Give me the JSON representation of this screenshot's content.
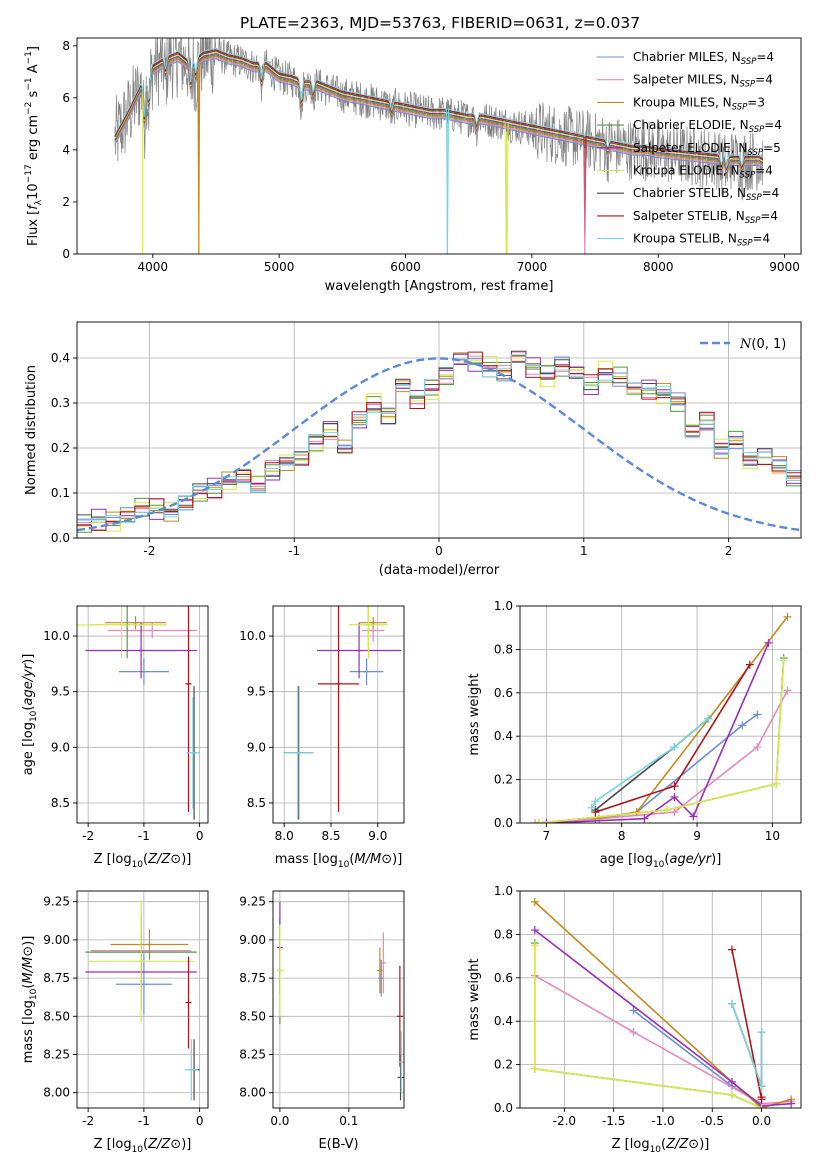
{
  "figure": {
    "title": "PLATE=2363, MJD=53763, FIBERID=0631, z=0.037"
  },
  "colors": {
    "Chabrier MILES": "#6a8fd8",
    "Salpeter MILES": "#e787be",
    "Kroupa MILES": "#c48a1f",
    "Chabrier ELODIE": "#4f9a43",
    "Salpeter ELODIE": "#9b2eb8",
    "Kroupa ELODIE": "#d9e84c",
    "Chabrier STELIB": "#4a4a4a",
    "Salpeter STELIB": "#b0141b",
    "Kroupa STELIB": "#7bd4dc",
    "data": "#808080",
    "normal": "#5b8ad8"
  },
  "legend_spectrum": [
    {
      "name": "Chabrier MILES",
      "sub": "4"
    },
    {
      "name": "Salpeter MILES",
      "sub": "4"
    },
    {
      "name": "Kroupa MILES",
      "sub": "3"
    },
    {
      "name": "Chabrier ELODIE",
      "sub": "4"
    },
    {
      "name": "Salpeter ELODIE",
      "sub": "5"
    },
    {
      "name": "Kroupa ELODIE",
      "sub": "4"
    },
    {
      "name": "Chabrier STELIB",
      "sub": "4"
    },
    {
      "name": "Salpeter STELIB",
      "sub": "4"
    },
    {
      "name": "Kroupa STELIB",
      "sub": "4"
    }
  ],
  "legend_residual": {
    "label": "N(0, 1)"
  },
  "chart_data": [
    {
      "id": "spectrum",
      "type": "line",
      "xlabel": "wavelength [Angstrom, rest frame]",
      "ylabel": "Flux [f_λ 10^-17 erg cm^-2 s^-1 A^-1]",
      "xlim": [
        3400,
        9130
      ],
      "ylim": [
        0,
        8.3
      ],
      "xticks": [
        4000,
        5000,
        6000,
        7000,
        8000,
        9000
      ],
      "yticks": [
        0,
        2,
        4,
        6,
        8
      ],
      "grid": false,
      "legend_position": "top-right",
      "continuum": [
        [
          3700,
          4.4
        ],
        [
          3800,
          5.3
        ],
        [
          3900,
          6.3
        ],
        [
          4000,
          7.1
        ],
        [
          4100,
          7.4
        ],
        [
          4200,
          7.6
        ],
        [
          4300,
          7.2
        ],
        [
          4400,
          7.6
        ],
        [
          4500,
          7.7
        ],
        [
          4600,
          7.5
        ],
        [
          4700,
          7.4
        ],
        [
          4800,
          7.2
        ],
        [
          4900,
          7.2
        ],
        [
          5000,
          6.8
        ],
        [
          5100,
          6.7
        ],
        [
          5200,
          6.5
        ],
        [
          5300,
          6.5
        ],
        [
          5400,
          6.3
        ],
        [
          5500,
          6.1
        ],
        [
          5600,
          6.0
        ],
        [
          5700,
          5.9
        ],
        [
          5800,
          5.8
        ],
        [
          5900,
          5.7
        ],
        [
          6000,
          5.6
        ],
        [
          6100,
          5.5
        ],
        [
          6200,
          5.4
        ],
        [
          6300,
          5.4
        ],
        [
          6400,
          5.3
        ],
        [
          6500,
          5.2
        ],
        [
          6600,
          5.2
        ],
        [
          6700,
          5.1
        ],
        [
          6800,
          5.0
        ],
        [
          6900,
          4.9
        ],
        [
          7000,
          4.8
        ],
        [
          7100,
          4.7
        ],
        [
          7200,
          4.6
        ],
        [
          7300,
          4.5
        ],
        [
          7400,
          4.4
        ],
        [
          7500,
          4.3
        ],
        [
          7600,
          4.2
        ],
        [
          7700,
          4.1
        ],
        [
          7800,
          4.0
        ],
        [
          7900,
          4.0
        ],
        [
          8000,
          3.9
        ],
        [
          8200,
          3.8
        ],
        [
          8400,
          3.7
        ],
        [
          8600,
          3.6
        ],
        [
          8800,
          3.6
        ],
        [
          8830,
          3.5
        ]
      ]
    },
    {
      "id": "residuals",
      "type": "line",
      "xlabel": "(data-model)/error",
      "ylabel": "Normed distribution",
      "xlim": [
        -2.5,
        2.5
      ],
      "ylim": [
        0,
        0.48
      ],
      "xticks": [
        -2,
        -1,
        0,
        1,
        2
      ],
      "yticks": [
        0,
        0.1,
        0.2,
        0.3,
        0.4
      ],
      "grid": true,
      "legend_position": "top-right",
      "bin_edges_start": -2.5,
      "bin_width": 0.1,
      "hist_values": [
        0.03,
        0.04,
        0.035,
        0.05,
        0.07,
        0.065,
        0.06,
        0.08,
        0.1,
        0.11,
        0.125,
        0.135,
        0.12,
        0.15,
        0.17,
        0.18,
        0.21,
        0.24,
        0.2,
        0.26,
        0.3,
        0.27,
        0.34,
        0.31,
        0.33,
        0.36,
        0.4,
        0.39,
        0.38,
        0.37,
        0.4,
        0.38,
        0.36,
        0.38,
        0.37,
        0.34,
        0.37,
        0.36,
        0.33,
        0.33,
        0.32,
        0.3,
        0.24,
        0.26,
        0.2,
        0.22,
        0.17,
        0.18,
        0.16,
        0.13,
        0.12,
        0.11,
        0.09,
        0.1,
        0.08,
        0.07,
        0.06,
        0.05,
        0.05,
        0.04
      ],
      "normal_mean": 0,
      "normal_sigma": 1
    },
    {
      "id": "age_vs_Z",
      "type": "scatter",
      "xlabel": "Z [log10(Z/Z⊙)]",
      "ylabel": "age [log10(age/yr)]",
      "xlim": [
        -2.2,
        0.15
      ],
      "ylim": [
        8.32,
        10.27
      ],
      "xticks": [
        -2,
        -1,
        0
      ],
      "yticks": [
        8.5,
        9.0,
        9.5,
        10.0
      ],
      "grid": true,
      "points": [
        {
          "model": "Chabrier MILES",
          "x": -1.0,
          "xerr": 0.45,
          "y": 9.68,
          "yerr": 0.12
        },
        {
          "model": "Salpeter MILES",
          "x": -0.85,
          "xerr": 0.8,
          "y": 10.05,
          "yerr": 0.07
        },
        {
          "model": "Kroupa MILES",
          "x": -1.15,
          "xerr": 0.55,
          "y": 10.12,
          "yerr": 0.06
        },
        {
          "model": "Chabrier ELODIE",
          "x": -1.3,
          "xerr": 0.7,
          "y": 10.1,
          "yerr": 0.3
        },
        {
          "model": "Salpeter ELODIE",
          "x": -1.05,
          "xerr": 1.0,
          "y": 9.87,
          "yerr": 0.25
        },
        {
          "model": "Kroupa ELODIE",
          "x": -1.4,
          "xerr": 0.8,
          "y": 10.1,
          "yerr": 0.3
        },
        {
          "model": "Chabrier STELIB",
          "x": -0.1,
          "xerr": 0.05,
          "y": 8.95,
          "yerr": 0.6
        },
        {
          "model": "Salpeter STELIB",
          "x": -0.2,
          "xerr": 0.05,
          "y": 9.57,
          "yerr": 1.15
        },
        {
          "model": "Kroupa STELIB",
          "x": -0.12,
          "xerr": 0.12,
          "y": 8.95,
          "yerr": 0.5
        }
      ]
    },
    {
      "id": "age_vs_mass",
      "type": "scatter",
      "xlabel": "mass [log10(M/M⊙)]",
      "ylabel": "",
      "xlim": [
        7.88,
        9.28
      ],
      "ylim": [
        8.32,
        10.27
      ],
      "xticks": [
        8.0,
        8.5,
        9.0
      ],
      "yticks": [
        8.5,
        9.0,
        9.5,
        10.0
      ],
      "grid": true,
      "points": [
        {
          "model": "Chabrier MILES",
          "x": 8.88,
          "xerr": 0.18,
          "y": 9.68,
          "yerr": 0.12
        },
        {
          "model": "Salpeter MILES",
          "x": 8.95,
          "xerr": 0.12,
          "y": 10.05,
          "yerr": 0.1
        },
        {
          "model": "Kroupa MILES",
          "x": 8.95,
          "xerr": 0.15,
          "y": 10.12,
          "yerr": 0.05
        },
        {
          "model": "Chabrier ELODIE",
          "x": 8.9,
          "xerr": 0.2,
          "y": 10.1,
          "yerr": 0.2
        },
        {
          "model": "Salpeter ELODIE",
          "x": 8.8,
          "xerr": 0.45,
          "y": 9.87,
          "yerr": 0.25
        },
        {
          "model": "Kroupa ELODIE",
          "x": 8.9,
          "xerr": 0.2,
          "y": 10.1,
          "yerr": 0.3
        },
        {
          "model": "Chabrier STELIB",
          "x": 8.15,
          "xerr": 0.15,
          "y": 8.95,
          "yerr": 0.6
        },
        {
          "model": "Salpeter STELIB",
          "x": 8.58,
          "xerr": 0.22,
          "y": 9.57,
          "yerr": 1.15
        },
        {
          "model": "Kroupa STELIB",
          "x": 8.16,
          "xerr": 0.16,
          "y": 8.95,
          "yerr": 0.6
        }
      ]
    },
    {
      "id": "massweight_vs_age",
      "type": "line",
      "xlabel": "age [log10(age/yr)]",
      "ylabel": "mass weight",
      "xlim": [
        6.65,
        10.38
      ],
      "ylim": [
        0,
        1.0
      ],
      "xticks": [
        7,
        8,
        9,
        10
      ],
      "yticks": [
        0.0,
        0.2,
        0.4,
        0.6,
        0.8,
        1.0
      ],
      "grid": true,
      "series": [
        {
          "model": "Chabrier MILES",
          "x": [
            7.7,
            8.2,
            9.6,
            9.8
          ],
          "y": [
            0.02,
            0.05,
            0.45,
            0.5
          ]
        },
        {
          "model": "Salpeter MILES",
          "x": [
            6.85,
            7.7,
            8.7,
            9.8,
            10.2
          ],
          "y": [
            0.0,
            0.02,
            0.05,
            0.35,
            0.61
          ]
        },
        {
          "model": "Kroupa MILES",
          "x": [
            7.65,
            8.2,
            10.2
          ],
          "y": [
            0.02,
            0.05,
            0.95
          ]
        },
        {
          "model": "Chabrier ELODIE",
          "x": [
            6.9,
            8.6,
            10.05,
            10.15
          ],
          "y": [
            0.0,
            0.06,
            0.18,
            0.76
          ]
        },
        {
          "model": "Salpeter ELODIE",
          "x": [
            7.0,
            8.3,
            8.7,
            8.95,
            9.95
          ],
          "y": [
            0.0,
            0.02,
            0.12,
            0.03,
            0.83
          ]
        },
        {
          "model": "Kroupa ELODIE",
          "x": [
            6.9,
            8.6,
            10.05,
            10.15
          ],
          "y": [
            0.0,
            0.06,
            0.18,
            0.75
          ]
        },
        {
          "model": "Chabrier STELIB",
          "x": [
            7.65,
            8.7,
            9.15
          ],
          "y": [
            0.06,
            0.35,
            0.48
          ]
        },
        {
          "model": "Salpeter STELIB",
          "x": [
            7.65,
            8.7,
            9.7
          ],
          "y": [
            0.05,
            0.17,
            0.73
          ]
        },
        {
          "model": "Kroupa STELIB",
          "x": [
            7.6,
            7.65,
            8.7,
            9.15
          ],
          "y": [
            0.07,
            0.1,
            0.35,
            0.48
          ]
        }
      ]
    },
    {
      "id": "mass_vs_Z",
      "type": "scatter",
      "xlabel": "Z [log10(Z/Z⊙)]",
      "ylabel": "mass [log10(M/M⊙)]",
      "xlim": [
        -2.2,
        0.15
      ],
      "ylim": [
        7.9,
        9.32
      ],
      "xticks": [
        -2,
        -1,
        0
      ],
      "yticks": [
        8.0,
        8.25,
        8.5,
        8.75,
        9.0,
        9.25
      ],
      "grid": true,
      "points": [
        {
          "model": "Chabrier MILES",
          "x": -1.0,
          "xerr": 0.5,
          "y": 8.71,
          "yerr": 0.2
        },
        {
          "model": "Salpeter MILES",
          "x": -1.05,
          "xerr": 0.9,
          "y": 8.93,
          "yerr": 0.2
        },
        {
          "model": "Kroupa MILES",
          "x": -0.9,
          "xerr": 0.7,
          "y": 8.97,
          "yerr": 0.1
        },
        {
          "model": "Chabrier ELODIE",
          "x": -1.05,
          "xerr": 1.0,
          "y": 8.92,
          "yerr": 0.25
        },
        {
          "model": "Salpeter ELODIE",
          "x": -1.05,
          "xerr": 1.0,
          "y": 8.79,
          "yerr": 0.25
        },
        {
          "model": "Kroupa ELODIE",
          "x": -1.05,
          "xerr": 0.95,
          "y": 8.86,
          "yerr": 0.4
        },
        {
          "model": "Chabrier STELIB",
          "x": -0.1,
          "xerr": 0.1,
          "y": 8.15,
          "yerr": 0.2
        },
        {
          "model": "Salpeter STELIB",
          "x": -0.2,
          "xerr": 0.05,
          "y": 8.59,
          "yerr": 0.3
        },
        {
          "model": "Kroupa STELIB",
          "x": -0.15,
          "xerr": 0.12,
          "y": 8.15,
          "yerr": 0.2
        }
      ]
    },
    {
      "id": "mass_vs_EBV",
      "type": "scatter",
      "xlabel": "E(B-V)",
      "ylabel": "",
      "xlim": [
        -0.01,
        0.18
      ],
      "ylim": [
        7.9,
        9.32
      ],
      "xticks": [
        0.0,
        0.1
      ],
      "yticks": [
        8.0,
        8.25,
        8.5,
        8.75,
        9.0,
        9.25
      ],
      "grid": true,
      "points": [
        {
          "model": "Chabrier MILES",
          "x": 0.147,
          "y": 8.75,
          "yerr": 0.12
        },
        {
          "model": "Salpeter MILES",
          "x": 0.15,
          "y": 8.85,
          "yerr": 0.2
        },
        {
          "model": "Kroupa MILES",
          "x": 0.145,
          "y": 8.8,
          "yerr": 0.15
        },
        {
          "model": "Chabrier ELODIE",
          "x": 0.0,
          "y": 8.8,
          "yerr": 0.35
        },
        {
          "model": "Salpeter ELODIE",
          "x": 0.0,
          "y": 8.95,
          "yerr": 0.3
        },
        {
          "model": "Kroupa ELODIE",
          "x": 0.0,
          "y": 8.8,
          "yerr": 0.3
        },
        {
          "model": "Chabrier STELIB",
          "x": 0.175,
          "y": 8.1,
          "yerr": 0.15
        },
        {
          "model": "Salpeter STELIB",
          "x": 0.174,
          "y": 8.5,
          "yerr": 0.33
        },
        {
          "model": "Kroupa STELIB",
          "x": 0.176,
          "y": 8.2,
          "yerr": 0.2
        }
      ]
    },
    {
      "id": "massweight_vs_Z",
      "type": "line",
      "xlabel": "Z [log10(Z/Z⊙)]",
      "ylabel": "mass weight",
      "xlim": [
        -2.45,
        0.4
      ],
      "ylim": [
        0,
        1.0
      ],
      "xticks": [
        -2.0,
        -1.5,
        -1.0,
        -0.5,
        0.0
      ],
      "yticks": [
        0.0,
        0.2,
        0.4,
        0.6,
        0.8,
        1.0
      ],
      "grid": true,
      "series": [
        {
          "model": "Chabrier MILES",
          "x": [
            -1.3,
            -0.3,
            0.0
          ],
          "y": [
            0.45,
            0.1,
            0.02
          ]
        },
        {
          "model": "Salpeter MILES",
          "x": [
            -2.3,
            -1.3,
            0.0,
            0.3
          ],
          "y": [
            0.61,
            0.35,
            0.02,
            0.03
          ]
        },
        {
          "model": "Kroupa MILES",
          "x": [
            -2.3,
            -0.3,
            0.0,
            0.3
          ],
          "y": [
            0.95,
            0.12,
            0.0,
            0.04
          ]
        },
        {
          "model": "Chabrier ELODIE",
          "x": [
            -2.3,
            -2.3,
            -0.3,
            0.0
          ],
          "y": [
            0.76,
            0.18,
            0.06,
            0.0
          ]
        },
        {
          "model": "Salpeter ELODIE",
          "x": [
            -2.3,
            -0.3,
            0.0,
            0.3
          ],
          "y": [
            0.82,
            0.12,
            0.01,
            0.02
          ]
        },
        {
          "model": "Kroupa ELODIE",
          "x": [
            -2.3,
            -2.3,
            -0.3,
            0.0
          ],
          "y": [
            0.75,
            0.18,
            0.06,
            0.0
          ]
        },
        {
          "model": "Chabrier STELIB",
          "x": [
            -0.3,
            0.0,
            0.0
          ],
          "y": [
            0.48,
            0.1,
            0.35
          ]
        },
        {
          "model": "Salpeter STELIB",
          "x": [
            -0.3,
            0.0,
            0.0
          ],
          "y": [
            0.73,
            0.04,
            0.05
          ]
        },
        {
          "model": "Kroupa STELIB",
          "x": [
            -0.3,
            0.0,
            0.0
          ],
          "y": [
            0.48,
            0.1,
            0.35
          ]
        }
      ]
    }
  ]
}
